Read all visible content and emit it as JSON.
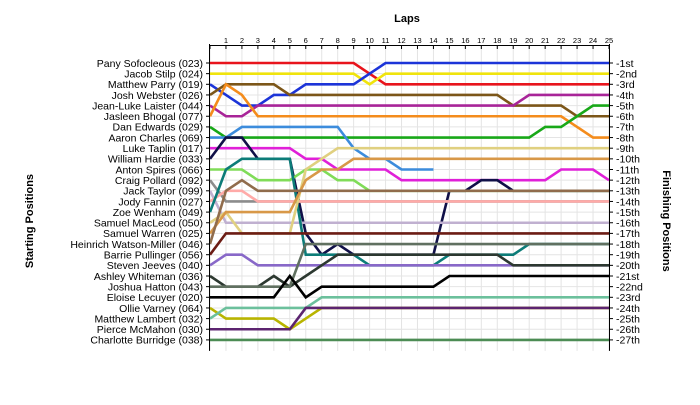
{
  "chart_data": {
    "type": "line",
    "title": "Laps",
    "ylabel_left": "Starting Positions",
    "ylabel_right": "Finishing Positions",
    "laps": [
      "1",
      "2",
      "3",
      "4",
      "5",
      "6",
      "7",
      "8",
      "9",
      "10",
      "11",
      "12",
      "13",
      "14",
      "15",
      "16",
      "17",
      "18",
      "19",
      "20",
      "21",
      "22",
      "23",
      "24",
      "25"
    ],
    "finish_labels": [
      "1st",
      "2nd",
      "3rd",
      "4th",
      "5th",
      "6th",
      "7th",
      "8th",
      "9th",
      "10th",
      "11th",
      "12th",
      "13th",
      "14th",
      "15th",
      "16th",
      "17th",
      "18th",
      "19th",
      "20th",
      "21st",
      "22nd",
      "23rd",
      "24th",
      "25th",
      "26th",
      "27th"
    ],
    "grid": true,
    "series": [
      {
        "name": "Pany Sofocleous (023)",
        "color": "#e8141c",
        "positions": [
          1,
          1,
          1,
          1,
          1,
          1,
          1,
          1,
          1,
          1,
          2,
          3,
          3,
          3,
          3,
          3,
          3,
          3,
          3,
          3,
          3,
          3,
          3,
          3,
          3,
          3
        ]
      },
      {
        "name": "Jacob Stilp (024)",
        "color": "#f0e40c",
        "positions": [
          2,
          2,
          2,
          2,
          2,
          2,
          2,
          2,
          2,
          2,
          3,
          2,
          2,
          2,
          2,
          2,
          2,
          2,
          2,
          2,
          2,
          2,
          2,
          2,
          2,
          2
        ]
      },
      {
        "name": "Matthew Parry (019)",
        "color": "#1c34d8",
        "positions": [
          3,
          4,
          5,
          5,
          4,
          4,
          3,
          3,
          3,
          3,
          2,
          1,
          1,
          1,
          1,
          1,
          1,
          1,
          1,
          1,
          1,
          1,
          1,
          1,
          1,
          1
        ]
      },
      {
        "name": "Josh Webster (026)",
        "color": "#7c5618",
        "positions": [
          4,
          3,
          3,
          3,
          3,
          4,
          4,
          4,
          4,
          4,
          4,
          4,
          4,
          4,
          4,
          4,
          4,
          4,
          4,
          5,
          5,
          5,
          5,
          6,
          6,
          6
        ]
      },
      {
        "name": "Jean-Luke Laister (044)",
        "color": "#a82498",
        "positions": [
          5,
          6,
          6,
          5,
          5,
          5,
          5,
          5,
          5,
          5,
          5,
          5,
          5,
          5,
          5,
          5,
          5,
          5,
          5,
          5,
          4,
          4,
          4,
          4,
          4,
          4
        ]
      },
      {
        "name": "Jasleen Bhogal (077)",
        "color": "#f48c1c",
        "positions": [
          6,
          3,
          4,
          6,
          6,
          6,
          6,
          6,
          6,
          6,
          6,
          6,
          6,
          6,
          6,
          6,
          6,
          6,
          6,
          6,
          6,
          6,
          6,
          7,
          8,
          8
        ]
      },
      {
        "name": "Dan Edwards (029)",
        "color": "#18a818",
        "positions": [
          7,
          8,
          8,
          8,
          8,
          8,
          8,
          8,
          8,
          8,
          8,
          8,
          8,
          8,
          8,
          8,
          8,
          8,
          8,
          8,
          8,
          7,
          7,
          6,
          5,
          5
        ]
      },
      {
        "name": "Aaron Charles (069)",
        "color": "#3c8cdc",
        "positions": [
          8,
          8,
          7,
          7,
          7,
          7,
          7,
          7,
          7,
          9,
          10,
          10,
          11,
          11,
          11
        ]
      },
      {
        "name": "Luke Taplin (017)",
        "color": "#e020d8",
        "positions": [
          9,
          9,
          9,
          9,
          9,
          9,
          10,
          10,
          11,
          11,
          11,
          11,
          12,
          12,
          12,
          12,
          12,
          12,
          12,
          12,
          12,
          12,
          11,
          11,
          11,
          12
        ]
      },
      {
        "name": "William Hardie (033)",
        "color": "#101048",
        "positions": [
          10,
          8,
          8,
          10,
          10,
          10,
          17,
          19,
          18,
          19,
          19,
          19,
          19,
          19,
          19,
          13,
          13,
          12,
          12,
          13,
          13,
          13,
          13,
          13,
          13,
          13
        ]
      },
      {
        "name": "Anton Spires (066)",
        "color": "#80dc58",
        "positions": [
          11,
          11,
          11,
          12,
          12,
          12,
          11,
          11,
          12,
          12,
          13,
          13,
          13,
          13,
          13,
          13,
          13,
          13,
          13,
          13,
          13,
          13,
          13,
          13,
          13,
          13
        ]
      },
      {
        "name": "Craig Pollard (092)",
        "color": "#8c8c8c",
        "positions": [
          12,
          14,
          14,
          14,
          14,
          14,
          14,
          14,
          14,
          14,
          14,
          14,
          14,
          14,
          14,
          14,
          14,
          14,
          14,
          14,
          14,
          14,
          14,
          14,
          14,
          14
        ]
      },
      {
        "name": "Jack Taylor (099)",
        "color": "#c0b0d0",
        "positions": [
          13,
          16,
          16,
          16,
          16,
          16,
          16,
          16,
          16,
          16,
          16,
          16,
          16,
          16,
          16,
          16,
          16,
          16,
          16,
          16,
          16,
          16,
          16,
          16,
          16,
          16
        ]
      },
      {
        "name": "Jody Fannin (027)",
        "color": "#ffaaa8",
        "positions": [
          14,
          13,
          13,
          14,
          14,
          14,
          14,
          14,
          14,
          14,
          14,
          14,
          14,
          14,
          14,
          14,
          14,
          14,
          14,
          14,
          14,
          14,
          14,
          14,
          14,
          14
        ]
      },
      {
        "name": "Zoe Wenham (049)",
        "color": "#0c7c78",
        "positions": [
          15,
          11,
          10,
          10,
          10,
          10,
          19,
          19,
          19,
          19,
          20,
          20,
          20,
          20,
          20,
          19,
          19,
          19,
          19,
          19,
          18,
          18,
          18,
          18,
          18,
          18
        ]
      },
      {
        "name": "Samuel MacLeod (050)",
        "color": "#e0d080",
        "positions": [
          16,
          15,
          17,
          17,
          17,
          17,
          11,
          10,
          9,
          9,
          9,
          9,
          9,
          9,
          9,
          9,
          9,
          9,
          9,
          9,
          9,
          9,
          9,
          9,
          9,
          9
        ]
      },
      {
        "name": "Samuel Warren (025)",
        "color": "#d89848",
        "positions": [
          17,
          15,
          15,
          15,
          15,
          15,
          12,
          11,
          11,
          10,
          10,
          10,
          10,
          10,
          10,
          10,
          10,
          10,
          10,
          10,
          10,
          10,
          10,
          10,
          10,
          10
        ]
      },
      {
        "name": "Heinrich Watson-Miller (046)",
        "color": "#906c4c",
        "positions": [
          18,
          13,
          12,
          13,
          13,
          13,
          13,
          13,
          13,
          13,
          13,
          13,
          13,
          13,
          13,
          13,
          13,
          13,
          13,
          13,
          13,
          13,
          13,
          13,
          13,
          13
        ]
      },
      {
        "name": "Barrie Pullinger (056)",
        "color": "#6c1c14",
        "positions": [
          19,
          17,
          17,
          17,
          17,
          17,
          17,
          17,
          17,
          17,
          17,
          17,
          17,
          17,
          17,
          17,
          17,
          17,
          17,
          17,
          17,
          17,
          17,
          17,
          17,
          17
        ]
      },
      {
        "name": "Steven Jeeves (040)",
        "color": "#8868c8",
        "positions": [
          20,
          19,
          19,
          20,
          20,
          20,
          20,
          20,
          20,
          20,
          20,
          20,
          20,
          20,
          20,
          20,
          20,
          20,
          20,
          20,
          20,
          20,
          20,
          20,
          20,
          20
        ]
      },
      {
        "name": "Ashley Whiteman (036)",
        "color": "#2c3830",
        "positions": [
          21,
          22,
          22,
          22,
          21,
          22,
          21,
          20,
          19,
          19,
          19,
          19,
          19,
          19,
          19,
          19,
          19,
          19,
          19,
          20,
          20,
          20,
          20,
          20,
          20,
          20
        ]
      },
      {
        "name": "Joshua Hatton (043)",
        "color": "#607060",
        "positions": [
          22,
          22,
          22,
          22,
          22,
          22,
          18,
          18,
          18,
          18,
          18,
          18,
          18,
          18,
          18,
          18,
          18,
          18,
          18,
          18,
          18,
          18,
          18,
          18,
          18,
          18
        ]
      },
      {
        "name": "Eloise Lecuyer (020)",
        "color": "#000000",
        "positions": [
          23,
          23,
          23,
          23,
          23,
          21,
          23,
          22,
          22,
          22,
          22,
          22,
          22,
          22,
          22,
          21,
          21,
          21,
          21,
          21,
          21,
          21,
          21,
          21,
          21,
          21
        ]
      },
      {
        "name": "Ollie Varney (064)",
        "color": "#b8b400",
        "positions": [
          24,
          25,
          25,
          25,
          25,
          26,
          25,
          24,
          24,
          24,
          24,
          24,
          24,
          24,
          24,
          24,
          24,
          24,
          24,
          24,
          24,
          24,
          24,
          24,
          24,
          24
        ]
      },
      {
        "name": "Matthew Lambert (032)",
        "color": "#6cc09c",
        "positions": [
          25,
          24,
          24,
          24,
          24,
          24,
          24,
          23,
          23,
          23,
          23,
          23,
          23,
          23,
          23,
          23,
          23,
          23,
          23,
          23,
          23,
          23,
          23,
          23,
          23,
          23
        ]
      },
      {
        "name": "Pierce McMahon (030)",
        "color": "#5c2470",
        "positions": [
          26,
          26,
          26,
          26,
          26,
          26,
          24,
          24,
          24,
          24,
          24,
          24,
          24,
          24,
          24,
          24,
          24,
          24,
          24,
          24,
          24,
          24,
          24,
          24,
          24,
          24
        ]
      },
      {
        "name": "Charlotte Burridge (038)",
        "color": "#4c8c54",
        "positions": [
          27,
          27,
          27,
          27,
          27,
          27,
          27,
          27,
          27,
          27,
          27,
          27,
          27,
          27,
          27,
          27,
          27,
          27,
          27,
          27,
          27,
          27,
          27,
          27,
          27,
          27
        ]
      }
    ]
  }
}
